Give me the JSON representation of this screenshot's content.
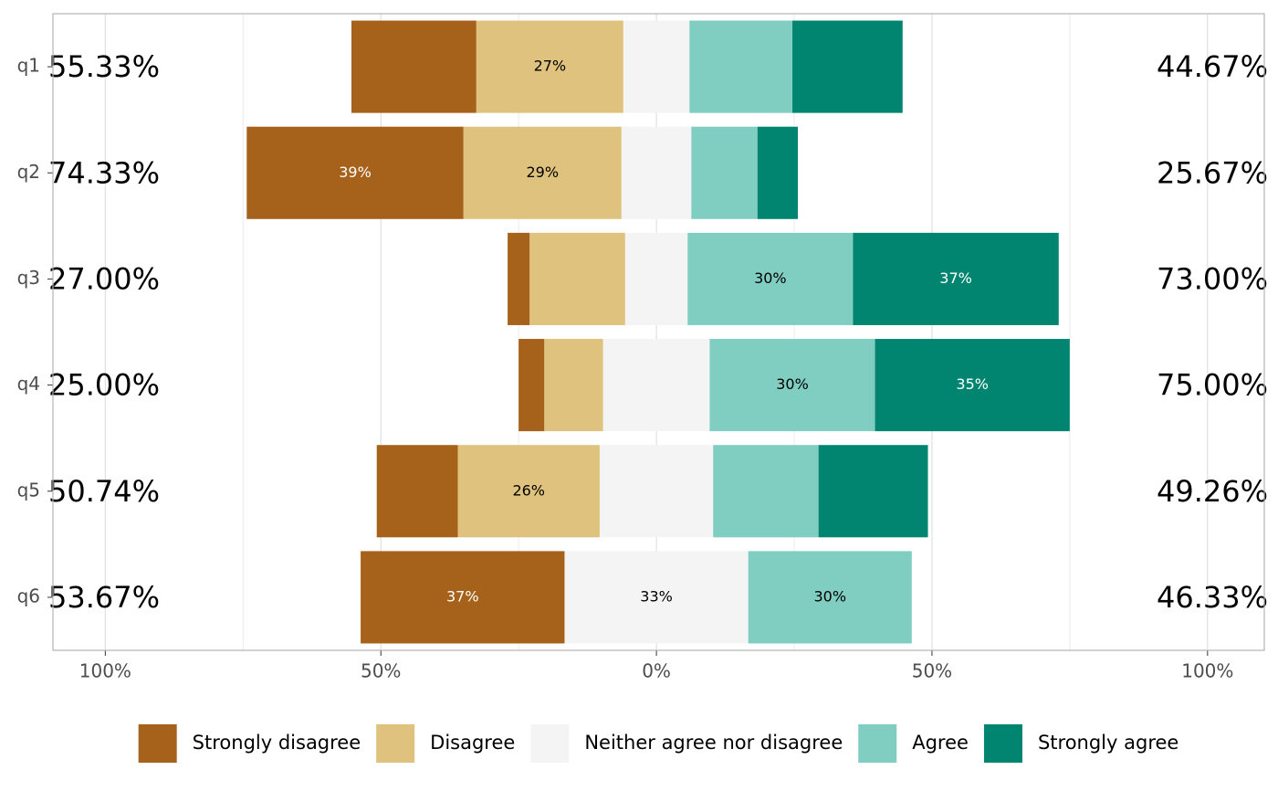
{
  "chart_data": {
    "type": "diverging-bar",
    "categories": [
      "q1",
      "q2",
      "q3",
      "q4",
      "q5",
      "q6"
    ],
    "series": [
      {
        "name": "Strongly disagree",
        "color": "#a6611a",
        "label_color": "#ffffff",
        "values": [
          22.67,
          39.33,
          4,
          4.67,
          14.71,
          37
        ],
        "value_labels": [
          null,
          "39%",
          null,
          null,
          null,
          "37%"
        ]
      },
      {
        "name": "Disagree",
        "color": "#dfc27d",
        "label_color": "#000000",
        "values": [
          26.67,
          28.67,
          17.33,
          10.67,
          25.74,
          0
        ],
        "value_labels": [
          "27%",
          "29%",
          null,
          null,
          "26%",
          null
        ]
      },
      {
        "name": "Neither agree nor disagree",
        "color": "#f4f4f4",
        "label_color": "#000000",
        "values": [
          12,
          12.67,
          11.33,
          19.33,
          20.59,
          33.33
        ],
        "value_labels": [
          null,
          null,
          null,
          null,
          null,
          "33%"
        ]
      },
      {
        "name": "Agree",
        "color": "#80cdc1",
        "label_color": "#000000",
        "values": [
          18.67,
          12,
          30,
          30,
          19.12,
          29.67
        ],
        "value_labels": [
          null,
          null,
          "30%",
          "30%",
          null,
          "30%"
        ]
      },
      {
        "name": "Strongly agree",
        "color": "#018571",
        "label_color": "#ffffff",
        "values": [
          20,
          7.33,
          37.33,
          35.33,
          19.85,
          0
        ],
        "value_labels": [
          null,
          null,
          "37%",
          "35%",
          null,
          null
        ]
      }
    ],
    "low_totals": [
      "55.33%",
      "74.33%",
      "27.00%",
      "25.00%",
      "50.74%",
      "53.67%"
    ],
    "high_totals": [
      "44.67%",
      "25.67%",
      "73.00%",
      "75.00%",
      "49.26%",
      "46.33%"
    ],
    "xlim": [
      -109.5,
      110.3
    ],
    "xticks": [
      {
        "value": -100,
        "label": "100%"
      },
      {
        "value": -50,
        "label": "50%"
      },
      {
        "value": 0,
        "label": "0%"
      },
      {
        "value": 50,
        "label": "50%"
      },
      {
        "value": 100,
        "label": "100%"
      }
    ],
    "xminor": [
      -75,
      -25,
      25,
      75
    ],
    "grid": true,
    "legend": "bottom"
  }
}
